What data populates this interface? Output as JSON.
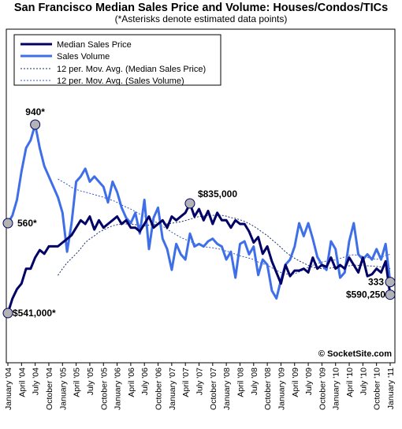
{
  "chart_data": {
    "type": "line",
    "title": "San Francisco Median Sales Price and Volume: Houses/Condos/TICs",
    "subtitle": "(*Asterisks denote estimated data points)",
    "credit": "© SocketSite.com",
    "x_ticks": [
      "January '04",
      "April '04",
      "July '04",
      "October '04",
      "January '05",
      "April '05",
      "July '05",
      "October '05",
      "January '06",
      "April '06",
      "July '06",
      "October '06",
      "January '07",
      "April '07",
      "July '07",
      "October '07",
      "January '08",
      "April '08",
      "July '08",
      "October '08",
      "January '09",
      "April '09",
      "July '09",
      "October '09",
      "January '10",
      "April '10",
      "July '10",
      "October '10",
      "January '11"
    ],
    "legend": {
      "placement": "top-left",
      "entries": [
        "Median Sales Price",
        "Sales Volume",
        "12 per. Mov. Avg. (Median Sales Price)",
        "12 per. Mov. Avg. (Sales Volume)"
      ]
    },
    "colors": {
      "price": "#000066",
      "volume": "#3f6fe8",
      "price_ma": "#1a2a6a",
      "volume_ma": "#3355cc",
      "marker_fill": "#b3b3b3",
      "marker_stroke": "#000066"
    },
    "annotations": [
      {
        "label": "940*",
        "series": "volume",
        "index": 6
      },
      {
        "label": "$835,000",
        "series": "price",
        "index": 40
      },
      {
        "label": "$541,000*",
        "series": "price",
        "index": 0
      },
      {
        "label": "560*",
        "series": "volume",
        "index": 0
      },
      {
        "label": "$590,250",
        "series": "price",
        "index": 84
      },
      {
        "label": "333",
        "series": "volume",
        "index": 84
      }
    ],
    "series": [
      {
        "name": "Median Sales Price",
        "values": [
          541000,
          580000,
          605000,
          620000,
          660000,
          660000,
          690000,
          710000,
          700000,
          720000,
          720000,
          720000,
          730000,
          740000,
          750000,
          770000,
          790000,
          780000,
          800000,
          765000,
          790000,
          770000,
          780000,
          790000,
          800000,
          780000,
          790000,
          770000,
          770000,
          760000,
          780000,
          800000,
          770000,
          780000,
          790000,
          770000,
          800000,
          790000,
          800000,
          810000,
          835000,
          800000,
          820000,
          790000,
          815000,
          780000,
          810000,
          790000,
          790000,
          770000,
          790000,
          780000,
          780000,
          760000,
          730000,
          745000,
          700000,
          720000,
          680000,
          650000,
          620000,
          670000,
          640000,
          655000,
          655000,
          660000,
          650000,
          690000,
          660000,
          670000,
          665000,
          690000,
          660000,
          670000,
          660000,
          690000,
          670000,
          650000,
          690000,
          640000,
          645000,
          660000,
          650000,
          680000,
          590250
        ]
      },
      {
        "name": "Sales Volume",
        "values": [
          560,
          590,
          650,
          760,
          850,
          880,
          940,
          850,
          780,
          740,
          700,
          660,
          600,
          450,
          560,
          720,
          740,
          770,
          720,
          740,
          720,
          700,
          640,
          720,
          680,
          620,
          580,
          560,
          600,
          520,
          650,
          460,
          580,
          620,
          500,
          460,
          380,
          480,
          440,
          420,
          520,
          470,
          480,
          470,
          490,
          500,
          480,
          470,
          420,
          450,
          350,
          480,
          490,
          440,
          470,
          360,
          420,
          400,
          300,
          270,
          340,
          400,
          420,
          470,
          560,
          510,
          560,
          500,
          430,
          400,
          380,
          490,
          460,
          350,
          370,
          490,
          560,
          440,
          420,
          440,
          420,
          460,
          420,
          480,
          333
        ]
      },
      {
        "name": "12 per. Mov. Avg. (Median Sales Price)",
        "values": [
          null,
          null,
          null,
          null,
          null,
          null,
          null,
          null,
          null,
          null,
          null,
          642000,
          660000,
          676000,
          688000,
          700000,
          714000,
          730000,
          740000,
          748000,
          758000,
          764000,
          770000,
          775000,
          778000,
          780000,
          780000,
          780000,
          778000,
          776000,
          775000,
          777000,
          778000,
          779000,
          780000,
          780000,
          782000,
          784000,
          786000,
          789000,
          793000,
          796000,
          800000,
          801000,
          803000,
          803000,
          804000,
          803000,
          801000,
          797000,
          795000,
          791000,
          787000,
          781000,
          774000,
          766000,
          757000,
          749000,
          738000,
          728000,
          717000,
          705000,
          696000,
          688000,
          681000,
          675000,
          669000,
          664000,
          661000,
          660000,
          660000,
          662000,
          664000,
          665000,
          666000,
          668000,
          670000,
          669000,
          670000,
          668000,
          667000,
          666000,
          665000,
          665000,
          660000
        ]
      },
      {
        "name": "12 per. Mov. Avg. (Sales Volume)",
        "values": [
          null,
          null,
          null,
          null,
          null,
          null,
          null,
          null,
          null,
          null,
          null,
          730,
          720,
          710,
          698,
          690,
          684,
          680,
          675,
          670,
          665,
          660,
          652,
          648,
          640,
          630,
          622,
          614,
          605,
          595,
          588,
          575,
          568,
          560,
          548,
          537,
          525,
          515,
          505,
          497,
          490,
          482,
          476,
          470,
          467,
          465,
          462,
          458,
          452,
          448,
          440,
          434,
          430,
          425,
          420,
          410,
          404,
          398,
          388,
          378,
          370,
          365,
          362,
          365,
          372,
          380,
          390,
          398,
          404,
          410,
          414,
          418,
          418,
          424,
          430,
          436,
          438,
          436,
          432,
          428,
          424,
          420,
          428,
          436,
          440
        ]
      }
    ]
  }
}
